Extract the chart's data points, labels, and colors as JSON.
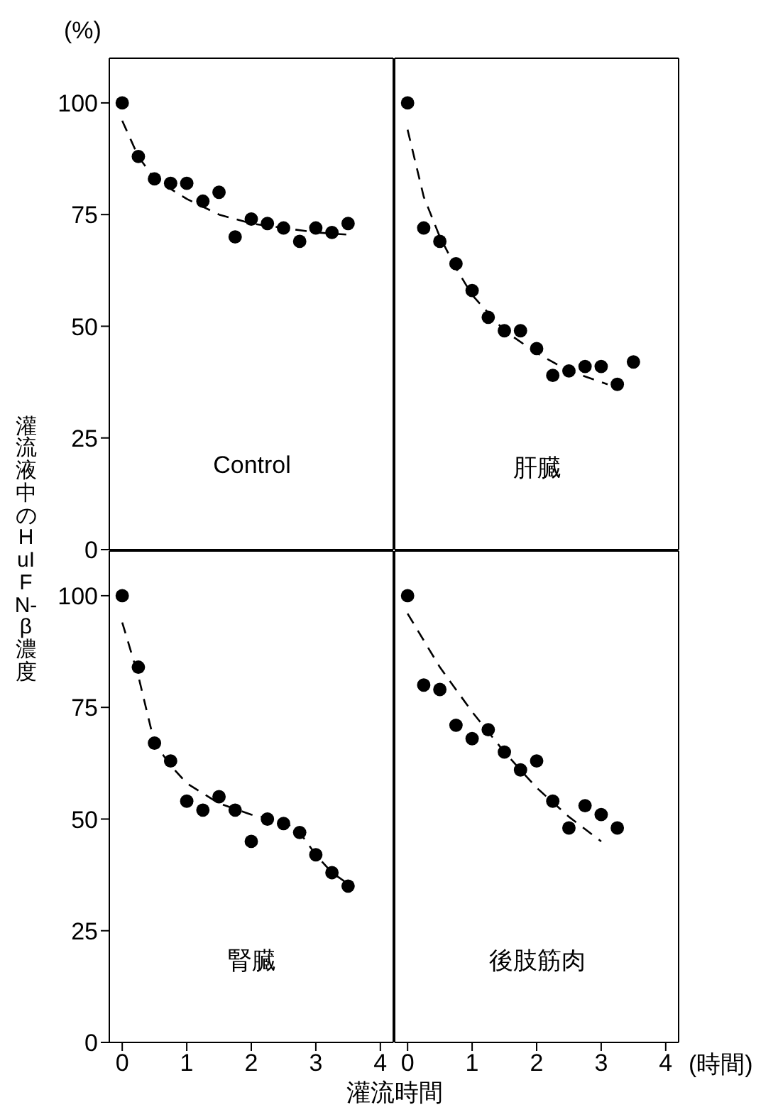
{
  "chart_data": [
    {
      "type": "scatter",
      "title": "Control",
      "ylabel": "灌流液中のHuIFN-β濃度",
      "annotations": [
        "(%)"
      ],
      "xlim": [
        -0.2,
        4.2
      ],
      "xticks": [
        0,
        1,
        2,
        3,
        4
      ],
      "ylim": [
        0,
        110
      ],
      "yticks": [
        0,
        25,
        50,
        75,
        100
      ],
      "tick_labels": "y",
      "marker": "circle",
      "series": [
        {
          "type": "scatter",
          "color": "#000000",
          "x": [
            0,
            0.25,
            0.5,
            0.75,
            1,
            1.25,
            1.5,
            1.75,
            2,
            2.25,
            2.5,
            2.75,
            3,
            3.25,
            3.5
          ],
          "values": [
            100,
            88,
            83,
            82,
            82,
            78,
            80,
            70,
            74,
            73,
            72,
            69,
            72,
            71,
            73
          ]
        },
        {
          "type": "line",
          "color": "#000000",
          "line_style": "dashed",
          "marker": "none",
          "x": [
            0,
            0.25,
            0.5,
            1,
            1.5,
            2,
            2.5,
            3,
            3.5
          ],
          "values": [
            96,
            88,
            83,
            78.5,
            75,
            73,
            72,
            71,
            70.5
          ]
        }
      ]
    },
    {
      "type": "scatter",
      "title": "肝臓",
      "xlim": [
        -0.2,
        4.2
      ],
      "xticks": [
        0,
        1,
        2,
        3,
        4
      ],
      "ylim": [
        0,
        110
      ],
      "yticks": [
        0,
        25,
        50,
        75,
        100
      ],
      "tick_labels": false,
      "marker": "circle",
      "series": [
        {
          "type": "scatter",
          "color": "#000000",
          "x": [
            0,
            0.25,
            0.5,
            0.75,
            1,
            1.25,
            1.5,
            1.75,
            2,
            2.25,
            2.5,
            2.75,
            3,
            3.25,
            3.5
          ],
          "values": [
            100,
            72,
            69,
            64,
            58,
            52,
            49,
            49,
            45,
            39,
            40,
            41,
            41,
            37,
            42
          ]
        },
        {
          "type": "line",
          "color": "#000000",
          "line_style": "dashed",
          "marker": "none",
          "x": [
            0,
            0.25,
            0.5,
            0.75,
            1,
            1.5,
            2,
            2.5,
            3.1
          ],
          "values": [
            94,
            79,
            70,
            63,
            57,
            49,
            44,
            40,
            37
          ]
        }
      ]
    },
    {
      "type": "scatter",
      "title": "腎臓",
      "xlabel": "灌流時間",
      "xlim": [
        -0.2,
        4.2
      ],
      "xticks": [
        0,
        1,
        2,
        3,
        4
      ],
      "ylim": [
        0,
        110
      ],
      "yticks": [
        0,
        25,
        50,
        75,
        100
      ],
      "marker": "circle",
      "series": [
        {
          "type": "scatter",
          "color": "#000000",
          "x": [
            0,
            0.25,
            0.5,
            0.75,
            1,
            1.25,
            1.5,
            1.75,
            2,
            2.25,
            2.5,
            2.75,
            3,
            3.25,
            3.5
          ],
          "values": [
            100,
            84,
            67,
            63,
            54,
            52,
            55,
            52,
            45,
            50,
            49,
            47,
            42,
            38,
            35
          ]
        },
        {
          "type": "line",
          "color": "#000000",
          "line_style": "dashed",
          "marker": "none",
          "x": [
            0,
            0.25,
            0.5,
            0.75,
            1,
            1.5,
            2,
            2.5,
            2.75,
            3,
            3.25,
            3.5
          ],
          "values": [
            94,
            82,
            67,
            62,
            58,
            53.5,
            51,
            49.5,
            47,
            42,
            38,
            35.5
          ]
        }
      ]
    },
    {
      "type": "scatter",
      "title": "後肢筋肉",
      "annotations": [
        "(時間)"
      ],
      "xlim": [
        -0.2,
        4.2
      ],
      "xticks": [
        0,
        1,
        2,
        3,
        4
      ],
      "ylim": [
        0,
        110
      ],
      "yticks": [
        0,
        25,
        50,
        75,
        100
      ],
      "tick_labels": "x",
      "marker": "circle",
      "series": [
        {
          "type": "scatter",
          "color": "#000000",
          "x": [
            0,
            0.25,
            0.5,
            0.75,
            1,
            1.25,
            1.5,
            1.75,
            2,
            2.25,
            2.5,
            2.75,
            3,
            3.25
          ],
          "values": [
            100,
            80,
            79,
            71,
            68,
            70,
            65,
            61,
            63,
            54,
            48,
            53,
            51,
            48
          ]
        },
        {
          "type": "line",
          "color": "#000000",
          "line_style": "dashed",
          "marker": "none",
          "x": [
            0,
            0.5,
            1,
            1.5,
            2,
            2.5,
            3
          ],
          "values": [
            96,
            84,
            74,
            65,
            57,
            50.5,
            45
          ]
        }
      ]
    }
  ]
}
